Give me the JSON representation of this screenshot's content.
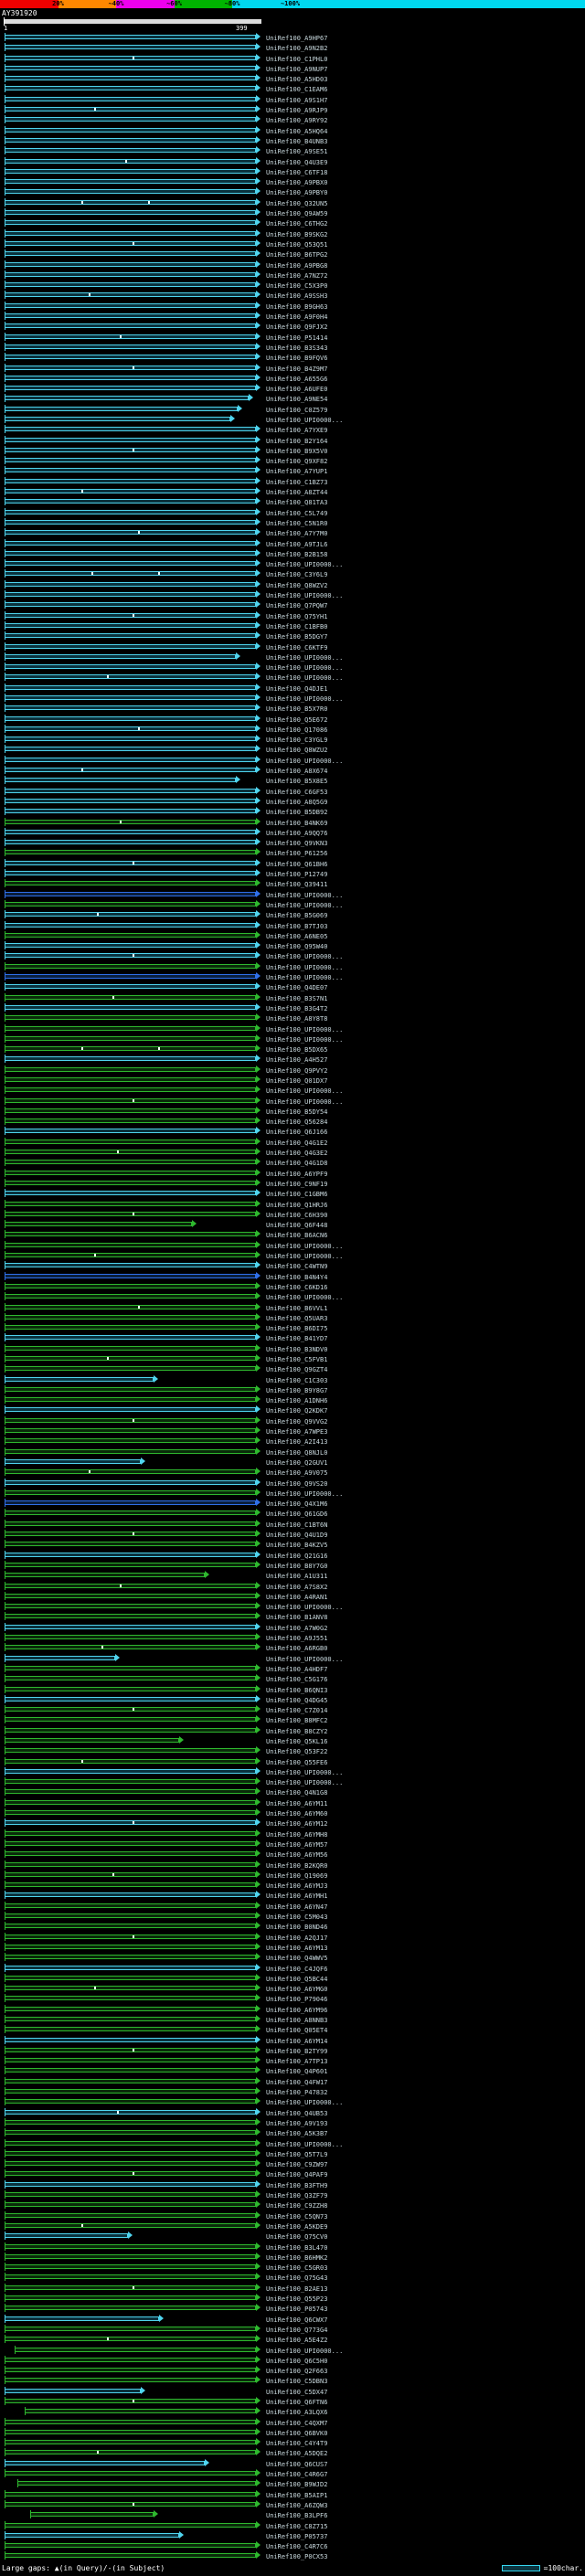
{
  "header": {
    "key": {
      "labels": [
        "20%",
        "~40%",
        "~60%",
        "~80%",
        "~100%"
      ],
      "colors": [
        "#f00000",
        "#ff8800",
        "#ee00ee",
        "#00b400",
        "#00d8f0"
      ]
    },
    "query": {
      "name": "AY391920",
      "start_label": "1",
      "end_label": "399"
    }
  },
  "footer": {
    "left_label": "Large gaps: ▲(in Query)/-(in Subject)",
    "right_label": "=100char."
  },
  "colors": {
    "c": {
      "line": "#4fd4ee",
      "fill": "#0a323d"
    },
    "g": {
      "line": "#2eb82e",
      "fill": "#0a2a0a"
    },
    "b": {
      "line": "#2f6fe8",
      "fill": "#0a1f3d"
    },
    "query_bar": "#dcdcdc",
    "label": "#c9d9de",
    "marker": "#ffffff"
  },
  "rows": [
    {
      "id": "UniRef100_A9HP67"
    },
    {
      "id": "UniRef100_A9N2B2"
    },
    {
      "id": "UniRef100_C1PHL0",
      "m": [
        0.5
      ]
    },
    {
      "id": "UniRef100_A9NUP7"
    },
    {
      "id": "UniRef100_A5HD03"
    },
    {
      "id": "UniRef100_C1EAM6"
    },
    {
      "id": "UniRef100_A9S1H7"
    },
    {
      "id": "UniRef100_A9RJP9",
      "m": [
        0.35
      ]
    },
    {
      "id": "UniRef100_A9RY92"
    },
    {
      "id": "UniRef100_A5HQ64"
    },
    {
      "id": "UniRef100_B4UNB3"
    },
    {
      "id": "UniRef100_A9SE51"
    },
    {
      "id": "UniRef100_Q4U3E9",
      "m": [
        0.47
      ]
    },
    {
      "id": "UniRef100_C6TF18"
    },
    {
      "id": "UniRef100_A9PBX0"
    },
    {
      "id": "UniRef100_A9PBY0"
    },
    {
      "id": "UniRef100_Q32UN5",
      "m": [
        0.3,
        0.56
      ]
    },
    {
      "id": "UniRef100_Q9AW59"
    },
    {
      "id": "UniRef100_C6THG2"
    },
    {
      "id": "UniRef100_B9SKG2"
    },
    {
      "id": "UniRef100_Q53Q51",
      "m": [
        0.5
      ]
    },
    {
      "id": "UniRef100_B6TPG2"
    },
    {
      "id": "UniRef100_A9PBG8"
    },
    {
      "id": "UniRef100_A7NZ72"
    },
    {
      "id": "UniRef100_C5X3P0"
    },
    {
      "id": "UniRef100_A9SSH3",
      "m": [
        0.33
      ]
    },
    {
      "id": "UniRef100_B9GH63"
    },
    {
      "id": "UniRef100_A9F0H4"
    },
    {
      "id": "UniRef100_Q9FJX2"
    },
    {
      "id": "UniRef100_P51414",
      "m": [
        0.45
      ]
    },
    {
      "id": "UniRef100_B3S343"
    },
    {
      "id": "UniRef100_B9FQV6"
    },
    {
      "id": "UniRef100_B4Z9M7",
      "m": [
        0.5
      ]
    },
    {
      "id": "UniRef100_A655G6"
    },
    {
      "id": "UniRef100_A6UFE0"
    },
    {
      "id": "UniRef100_A9NE54",
      "e": 0.97
    },
    {
      "id": "UniRef100_C0Z579",
      "e": 0.93
    },
    {
      "id": "UniRef100_UPI0000...",
      "e": 0.9
    },
    {
      "id": "UniRef100_A7YXE9"
    },
    {
      "id": "UniRef100_B2Y164"
    },
    {
      "id": "UniRef100_B9X5V0",
      "m": [
        0.5
      ]
    },
    {
      "id": "UniRef100_Q9XF82"
    },
    {
      "id": "UniRef100_A7YUP1"
    },
    {
      "id": "UniRef100_C1BZ73"
    },
    {
      "id": "UniRef100_A8ZT44",
      "m": [
        0.3
      ]
    },
    {
      "id": "UniRef100_Q81TA3"
    },
    {
      "id": "UniRef100_C5L749"
    },
    {
      "id": "UniRef100_C5N1R0"
    },
    {
      "id": "UniRef100_A7Y7M0",
      "m": [
        0.52
      ]
    },
    {
      "id": "UniRef100_A9TJL6"
    },
    {
      "id": "UniRef100_B2B158"
    },
    {
      "id": "UniRef100_UPI0000..."
    },
    {
      "id": "UniRef100_C3Y6L9",
      "m": [
        0.34,
        0.6
      ]
    },
    {
      "id": "UniRef100_Q8WZV2"
    },
    {
      "id": "UniRef100_UPI0000..."
    },
    {
      "id": "UniRef100_Q7PQW7"
    },
    {
      "id": "UniRef100_Q75YH1",
      "m": [
        0.5
      ]
    },
    {
      "id": "UniRef100_C1BFB0"
    },
    {
      "id": "UniRef100_B5DGY7"
    },
    {
      "id": "UniRef100_C6KTF9"
    },
    {
      "id": "UniRef100_UPI0000...",
      "e": 0.92
    },
    {
      "id": "UniRef100_UPI0000..."
    },
    {
      "id": "UniRef100_UPI0000...",
      "m": [
        0.4
      ]
    },
    {
      "id": "UniRef100_Q4DJE1"
    },
    {
      "id": "UniRef100_UPI0000..."
    },
    {
      "id": "UniRef100_B5X7R0"
    },
    {
      "id": "UniRef100_Q5E672"
    },
    {
      "id": "UniRef100_Q17086",
      "m": [
        0.52
      ]
    },
    {
      "id": "UniRef100_C3YGL9"
    },
    {
      "id": "UniRef100_Q8WZU2"
    },
    {
      "id": "UniRef100_UPI0000..."
    },
    {
      "id": "UniRef100_A8X674",
      "m": [
        0.3
      ]
    },
    {
      "id": "UniRef100_B5X8E5",
      "e": 0.92
    },
    {
      "id": "UniRef100_C6GF53"
    },
    {
      "id": "UniRef100_A8Q5G9"
    },
    {
      "id": "UniRef100_B5DB92"
    },
    {
      "id": "UniRef100_B4NK69",
      "c": "g",
      "m": [
        0.45
      ]
    },
    {
      "id": "UniRef100_A9QQ76"
    },
    {
      "id": "UniRef100_Q9VKN3"
    },
    {
      "id": "UniRef100_P61256",
      "c": "g"
    },
    {
      "id": "UniRef100_Q61BH6",
      "m": [
        0.5
      ]
    },
    {
      "id": "UniRef100_P12749"
    },
    {
      "id": "UniRef100_Q39411",
      "c": "g"
    },
    {
      "id": "UniRef100_UPI0000...",
      "c": "b"
    },
    {
      "id": "UniRef100_UPI0000...",
      "c": "g"
    },
    {
      "id": "UniRef100_B5G069",
      "m": [
        0.36
      ]
    },
    {
      "id": "UniRef100_B7TJ03"
    },
    {
      "id": "UniRef100_A6NE05",
      "c": "g"
    },
    {
      "id": "UniRef100_Q95W40"
    },
    {
      "id": "UniRef100_UPI0000...",
      "m": [
        0.5
      ]
    },
    {
      "id": "UniRef100_UPI0000...",
      "c": "g"
    },
    {
      "id": "UniRef100_UPI0000...",
      "c": "b"
    },
    {
      "id": "UniRef100_Q4DE07"
    },
    {
      "id": "UniRef100_B3S7N1",
      "c": "g",
      "m": [
        0.42
      ]
    },
    {
      "id": "UniRef100_B3G4T2"
    },
    {
      "id": "UniRef100_A8Y8T8",
      "c": "g"
    },
    {
      "id": "UniRef100_UPI0000...",
      "c": "g"
    },
    {
      "id": "UniRef100_UPI0000...",
      "c": "g"
    },
    {
      "id": "UniRef100_B5DX65",
      "c": "g",
      "m": [
        0.3,
        0.6
      ]
    },
    {
      "id": "UniRef100_A4H527"
    },
    {
      "id": "UniRef100_Q9PVY2",
      "c": "g"
    },
    {
      "id": "UniRef100_Q01DX7",
      "c": "g"
    },
    {
      "id": "UniRef100_UPI0000...",
      "c": "g"
    },
    {
      "id": "UniRef100_UPI0000...",
      "c": "g",
      "m": [
        0.5
      ]
    },
    {
      "id": "UniRef100_B5DY54",
      "c": "g"
    },
    {
      "id": "UniRef100_Q56284",
      "c": "g"
    },
    {
      "id": "UniRef100_Q6J166"
    },
    {
      "id": "UniRef100_Q4G1E2",
      "c": "g"
    },
    {
      "id": "UniRef100_Q4G3E2",
      "c": "g",
      "m": [
        0.44
      ]
    },
    {
      "id": "UniRef100_Q4G1D8",
      "c": "g"
    },
    {
      "id": "UniRef100_A6YPF9",
      "c": "g"
    },
    {
      "id": "UniRef100_C9NF19",
      "c": "g"
    },
    {
      "id": "UniRef100_C1GBM6"
    },
    {
      "id": "UniRef100_Q1HRJ6",
      "c": "g"
    },
    {
      "id": "UniRef100_C6H390",
      "c": "g",
      "m": [
        0.5
      ]
    },
    {
      "id": "UniRef100_Q6F448",
      "c": "g",
      "e": 0.75
    },
    {
      "id": "UniRef100_B6ACN6",
      "c": "g"
    },
    {
      "id": "UniRef100_UPI0000...",
      "c": "g"
    },
    {
      "id": "UniRef100_UPI0000...",
      "c": "g",
      "m": [
        0.35
      ]
    },
    {
      "id": "UniRef100_C4WTN9"
    },
    {
      "id": "UniRef100_B4N4Y4",
      "c": "b"
    },
    {
      "id": "UniRef100_C6KD16",
      "c": "g"
    },
    {
      "id": "UniRef100_UPI0000...",
      "c": "g"
    },
    {
      "id": "UniRef100_B6VVL1",
      "c": "g",
      "m": [
        0.52
      ]
    },
    {
      "id": "UniRef100_Q5UAR3",
      "c": "g"
    },
    {
      "id": "UniRef100_B6DI75",
      "c": "g"
    },
    {
      "id": "UniRef100_B41YD7"
    },
    {
      "id": "UniRef100_B3NDV0",
      "c": "g"
    },
    {
      "id": "UniRef100_C5FVB1",
      "c": "g",
      "m": [
        0.4
      ]
    },
    {
      "id": "UniRef100_Q9GZT4",
      "c": "g"
    },
    {
      "id": "UniRef100_C1C303",
      "e": 0.6
    },
    {
      "id": "UniRef100_B9Y8G7",
      "c": "g"
    },
    {
      "id": "UniRef100_A1DNH6",
      "c": "g"
    },
    {
      "id": "UniRef100_Q2KDK7"
    },
    {
      "id": "UniRef100_Q9VVG2",
      "c": "g",
      "m": [
        0.5
      ]
    },
    {
      "id": "UniRef100_A7WPE3",
      "c": "g"
    },
    {
      "id": "UniRef100_A2I413",
      "c": "g"
    },
    {
      "id": "UniRef100_Q8NJL0",
      "c": "g"
    },
    {
      "id": "UniRef100_Q2GUV1",
      "e": 0.55
    },
    {
      "id": "UniRef100_A9V075",
      "c": "g",
      "m": [
        0.33
      ]
    },
    {
      "id": "UniRef100_Q9VS20"
    },
    {
      "id": "UniRef100_UPI0000...",
      "c": "g"
    },
    {
      "id": "UniRef100_Q4X1M6",
      "c": "b"
    },
    {
      "id": "UniRef100_Q61GD6",
      "c": "g"
    },
    {
      "id": "UniRef100_C1BT6N",
      "c": "g"
    },
    {
      "id": "UniRef100_Q4U1D9",
      "c": "g",
      "m": [
        0.5
      ]
    },
    {
      "id": "UniRef100_B4KZV5",
      "c": "g"
    },
    {
      "id": "UniRef100_Q21G16"
    },
    {
      "id": "UniRef100_B8Y7G0",
      "c": "g"
    },
    {
      "id": "UniRef100_A1U311",
      "c": "g",
      "e": 0.8
    },
    {
      "id": "UniRef100_A7S8X2",
      "c": "g",
      "m": [
        0.45
      ]
    },
    {
      "id": "UniRef100_A4RAN1",
      "c": "g"
    },
    {
      "id": "UniRef100_UPI0000...",
      "c": "g"
    },
    {
      "id": "UniRef100_B1ANV8",
      "c": "g"
    },
    {
      "id": "UniRef100_A7W0G2"
    },
    {
      "id": "UniRef100_A9J551",
      "c": "g"
    },
    {
      "id": "UniRef100_A6RGB0",
      "c": "g",
      "m": [
        0.38
      ]
    },
    {
      "id": "UniRef100_UPI0000...",
      "e": 0.45
    },
    {
      "id": "UniRef100_A4HDF7",
      "c": "g"
    },
    {
      "id": "UniRef100_C5G176",
      "c": "g"
    },
    {
      "id": "UniRef100_B6QNI3",
      "c": "g"
    },
    {
      "id": "UniRef100_Q4DG45"
    },
    {
      "id": "UniRef100_C7Z014",
      "c": "g",
      "m": [
        0.5
      ]
    },
    {
      "id": "UniRef100_B8MFC2",
      "c": "g"
    },
    {
      "id": "UniRef100_B8CZY2",
      "c": "g"
    },
    {
      "id": "UniRef100_Q5KL16",
      "c": "g",
      "e": 0.7
    },
    {
      "id": "UniRef100_Q53F22",
      "c": "g"
    },
    {
      "id": "UniRef100_Q55FE6",
      "c": "g",
      "m": [
        0.3
      ]
    },
    {
      "id": "UniRef100_UPI0000..."
    },
    {
      "id": "UniRef100_UPI0000...",
      "c": "g"
    },
    {
      "id": "UniRef100_Q4N1G8",
      "c": "g"
    },
    {
      "id": "UniRef100_A6YM11",
      "c": "g"
    },
    {
      "id": "UniRef100_A6YM60",
      "c": "g"
    },
    {
      "id": "UniRef100_A6YM12",
      "m": [
        0.5
      ]
    },
    {
      "id": "UniRef100_A6YMH8",
      "c": "g"
    },
    {
      "id": "UniRef100_A6YM57",
      "c": "g"
    },
    {
      "id": "UniRef100_A6YM56",
      "c": "g"
    },
    {
      "id": "UniRef100_B2KQR0",
      "c": "g"
    },
    {
      "id": "UniRef100_Q19069",
      "c": "g",
      "m": [
        0.42
      ]
    },
    {
      "id": "UniRef100_A6YMJ3",
      "c": "g"
    },
    {
      "id": "UniRef100_A6YMH1"
    },
    {
      "id": "UniRef100_A6YN47",
      "c": "g"
    },
    {
      "id": "UniRef100_C5M043",
      "c": "g"
    },
    {
      "id": "UniRef100_B0ND46",
      "c": "g"
    },
    {
      "id": "UniRef100_A2QJ17",
      "c": "g",
      "m": [
        0.5
      ]
    },
    {
      "id": "UniRef100_A6YM13",
      "c": "g"
    },
    {
      "id": "UniRef100_Q4WWV5",
      "c": "g"
    },
    {
      "id": "UniRef100_C4JQF6"
    },
    {
      "id": "UniRef100_Q5BC44",
      "c": "g"
    },
    {
      "id": "UniRef100_A6YMG0",
      "c": "g",
      "m": [
        0.35
      ]
    },
    {
      "id": "UniRef100_P79046",
      "c": "g"
    },
    {
      "id": "UniRef100_A6YM96",
      "c": "g"
    },
    {
      "id": "UniRef100_A8NNB3",
      "c": "g"
    },
    {
      "id": "UniRef100_Q05ET4",
      "c": "g"
    },
    {
      "id": "UniRef100_A6YM14"
    },
    {
      "id": "UniRef100_B2TY99",
      "c": "g",
      "m": [
        0.5
      ]
    },
    {
      "id": "UniRef100_A7TP13",
      "c": "g"
    },
    {
      "id": "UniRef100_Q4P601",
      "c": "g"
    },
    {
      "id": "UniRef100_Q4FW17",
      "c": "g"
    },
    {
      "id": "UniRef100_P47832",
      "c": "g"
    },
    {
      "id": "UniRef100_UPI0000...",
      "c": "g"
    },
    {
      "id": "UniRef100_Q4UB53",
      "m": [
        0.44
      ]
    },
    {
      "id": "UniRef100_A9V193",
      "c": "g"
    },
    {
      "id": "UniRef100_A5K3B7",
      "c": "g"
    },
    {
      "id": "UniRef100_UPI0000...",
      "c": "g"
    },
    {
      "id": "UniRef100_Q5T7L9",
      "c": "g"
    },
    {
      "id": "UniRef100_C9ZW97",
      "c": "g"
    },
    {
      "id": "UniRef100_Q4PAF9",
      "c": "g",
      "m": [
        0.5
      ]
    },
    {
      "id": "UniRef100_B3FTH9"
    },
    {
      "id": "UniRef100_Q3ZF79",
      "c": "g"
    },
    {
      "id": "UniRef100_C9ZZH8",
      "c": "g"
    },
    {
      "id": "UniRef100_C5QN73",
      "c": "g"
    },
    {
      "id": "UniRef100_A5KDE9",
      "c": "g",
      "m": [
        0.3
      ]
    },
    {
      "id": "UniRef100_Q75CV0",
      "e": 0.5
    },
    {
      "id": "UniRef100_B3L470",
      "c": "g"
    },
    {
      "id": "UniRef100_B6HMK2",
      "c": "g"
    },
    {
      "id": "UniRef100_C5GR03",
      "c": "g"
    },
    {
      "id": "UniRef100_Q75G43",
      "c": "g"
    },
    {
      "id": "UniRef100_B2AE13",
      "c": "g",
      "m": [
        0.5
      ]
    },
    {
      "id": "UniRef100_Q55P23",
      "c": "g"
    },
    {
      "id": "UniRef100_P05743",
      "c": "g"
    },
    {
      "id": "UniRef100_Q6CWX7",
      "e": 0.62
    },
    {
      "id": "UniRef100_Q773G4",
      "c": "g"
    },
    {
      "id": "UniRef100_A5E4Z2",
      "c": "g",
      "m": [
        0.4
      ]
    },
    {
      "id": "UniRef100_UPI0000...",
      "c": "g",
      "s": 0.04
    },
    {
      "id": "UniRef100_Q6C5H0",
      "c": "g"
    },
    {
      "id": "UniRef100_Q2F663",
      "c": "g"
    },
    {
      "id": "UniRef100_C5DBN3",
      "c": "g"
    },
    {
      "id": "UniRef100_C5DX47",
      "e": 0.55
    },
    {
      "id": "UniRef100_Q6FTN6",
      "c": "g",
      "m": [
        0.5
      ]
    },
    {
      "id": "UniRef100_A3LQX6",
      "c": "g",
      "s": 0.08
    },
    {
      "id": "UniRef100_C4QXM7",
      "c": "g"
    },
    {
      "id": "UniRef100_Q6BVK0",
      "c": "g"
    },
    {
      "id": "UniRef100_C4Y4T9",
      "c": "g"
    },
    {
      "id": "UniRef100_A5DQE2",
      "c": "g",
      "m": [
        0.36
      ]
    },
    {
      "id": "UniRef100_Q6CUS7",
      "e": 0.8
    },
    {
      "id": "UniRef100_C4R6G7",
      "c": "g"
    },
    {
      "id": "UniRef100_B9WJD2",
      "c": "g",
      "s": 0.05
    },
    {
      "id": "UniRef100_B5AIP1",
      "c": "g"
    },
    {
      "id": "UniRef100_A6ZQW3",
      "c": "g",
      "m": [
        0.5
      ]
    },
    {
      "id": "UniRef100_B3LPF6",
      "c": "g",
      "s": 0.1,
      "e": 0.6
    },
    {
      "id": "UniRef100_C8Z715",
      "c": "g"
    },
    {
      "id": "UniRef100_P05737",
      "e": 0.7
    },
    {
      "id": "UniRef100_C4R7C6",
      "c": "g"
    },
    {
      "id": "UniRef100_P0CX53",
      "c": "g"
    }
  ]
}
